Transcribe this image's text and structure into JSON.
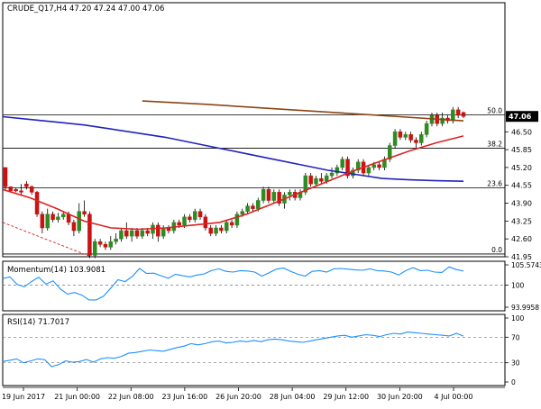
{
  "header": {
    "title": "CRUDE_Q17,H4  47.20 47.24 47.00 47.06"
  },
  "colors": {
    "bull": "#2e8b22",
    "bear": "#cc1111",
    "wick": "#000000",
    "sma_blue": "#2222bb",
    "sma_brown": "#8b4513",
    "sma_red": "#dd2222",
    "momentum": "#1e90ff",
    "rsi": "#1e90ff",
    "trendline": "#dd2222",
    "grid": "#000000",
    "price_tag_bg": "#000000",
    "price_tag_fg": "#ffffff"
  },
  "chart_data": [
    {
      "type": "candlestick",
      "title": "CRUDE_Q17,H4  47.20 47.24 47.00 47.06",
      "ylim": [
        41.95,
        51.2
      ],
      "y_ticks": [
        {
          "label": "46.50",
          "value": 46.5
        },
        {
          "label": "45.85",
          "value": 45.85
        },
        {
          "label": "45.20",
          "value": 45.2
        },
        {
          "label": "44.55",
          "value": 44.55
        },
        {
          "label": "43.90",
          "value": 43.9
        },
        {
          "label": "43.25",
          "value": 43.25
        },
        {
          "label": "42.60",
          "value": 42.6
        },
        {
          "label": "41.95",
          "value": 41.95
        }
      ],
      "current_price": {
        "label": "47.06",
        "value": 47.06
      },
      "fib_levels": [
        {
          "label": "50.0",
          "value": 47.12
        },
        {
          "label": "38.2",
          "value": 45.9
        },
        {
          "label": "23.6",
          "value": 44.46
        },
        {
          "label": "0.0",
          "value": 42.05
        }
      ],
      "candles": [
        [
          45.2,
          44.4,
          44.5,
          45.1
        ],
        [
          44.5,
          44.3,
          44.35,
          44.5
        ],
        [
          44.4,
          44.3,
          44.35,
          44.45
        ],
        [
          44.35,
          44.2,
          44.3,
          44.6
        ],
        [
          44.6,
          44.4,
          44.5,
          44.7
        ],
        [
          44.5,
          44.2,
          44.3,
          44.55
        ],
        [
          44.3,
          43.4,
          43.5,
          44.35
        ],
        [
          43.5,
          42.8,
          43.0,
          43.6
        ],
        [
          43.0,
          42.9,
          43.5,
          43.7
        ],
        [
          43.5,
          43.2,
          43.3,
          43.6
        ],
        [
          43.3,
          43.2,
          43.4,
          43.55
        ],
        [
          43.4,
          43.3,
          43.5,
          43.6
        ],
        [
          43.5,
          43.1,
          43.2,
          43.6
        ],
        [
          43.2,
          42.7,
          42.9,
          43.3
        ],
        [
          42.9,
          42.8,
          43.6,
          43.9
        ],
        [
          43.6,
          43.4,
          43.5,
          44.0
        ],
        [
          43.5,
          41.9,
          42.0,
          43.6
        ],
        [
          42.0,
          41.9,
          42.5,
          42.6
        ],
        [
          42.5,
          42.3,
          42.4,
          42.6
        ],
        [
          42.4,
          42.2,
          42.3,
          42.5
        ],
        [
          42.3,
          42.2,
          42.5,
          42.7
        ],
        [
          42.5,
          42.4,
          42.6,
          42.8
        ],
        [
          42.6,
          42.5,
          42.9,
          43.0
        ],
        [
          42.9,
          42.6,
          42.7,
          43.2
        ],
        [
          42.7,
          42.5,
          42.9,
          43.0
        ],
        [
          42.9,
          42.6,
          42.7,
          43.0
        ],
        [
          42.7,
          42.6,
          42.9,
          43.0
        ],
        [
          42.9,
          42.7,
          42.8,
          43.0
        ],
        [
          42.8,
          42.6,
          43.1,
          43.2
        ],
        [
          43.1,
          42.5,
          42.7,
          43.2
        ],
        [
          42.7,
          42.6,
          43.0,
          43.1
        ],
        [
          43.0,
          42.8,
          42.9,
          43.1
        ],
        [
          42.9,
          42.8,
          43.2,
          43.3
        ],
        [
          43.2,
          43.0,
          43.1,
          43.3
        ],
        [
          43.1,
          43.0,
          43.4,
          43.5
        ],
        [
          43.4,
          43.2,
          43.3,
          43.5
        ],
        [
          43.3,
          43.2,
          43.6,
          43.7
        ],
        [
          43.6,
          43.3,
          43.4,
          43.7
        ],
        [
          43.4,
          42.9,
          43.0,
          43.5
        ],
        [
          43.0,
          42.7,
          42.8,
          43.1
        ],
        [
          42.8,
          42.7,
          43.0,
          43.1
        ],
        [
          43.0,
          42.8,
          42.9,
          43.1
        ],
        [
          42.9,
          42.8,
          43.2,
          43.3
        ],
        [
          43.2,
          43.0,
          43.1,
          43.3
        ],
        [
          43.1,
          43.0,
          43.5,
          43.6
        ],
        [
          43.5,
          43.4,
          43.6,
          43.7
        ],
        [
          43.6,
          43.5,
          43.8,
          43.9
        ],
        [
          43.8,
          43.6,
          43.7,
          43.9
        ],
        [
          43.7,
          43.6,
          44.0,
          44.1
        ],
        [
          44.0,
          43.9,
          44.4,
          44.5
        ],
        [
          44.4,
          43.9,
          44.0,
          44.5
        ],
        [
          44.0,
          43.9,
          44.3,
          44.4
        ],
        [
          44.3,
          43.8,
          43.9,
          44.4
        ],
        [
          43.9,
          43.7,
          44.2,
          44.3
        ],
        [
          44.2,
          44.0,
          44.3,
          44.4
        ],
        [
          44.3,
          44.0,
          44.1,
          44.4
        ],
        [
          44.1,
          44.0,
          44.3,
          44.4
        ],
        [
          44.3,
          44.2,
          44.9,
          45.0
        ],
        [
          44.9,
          44.5,
          44.6,
          45.0
        ],
        [
          44.6,
          44.5,
          44.8,
          44.9
        ],
        [
          44.8,
          44.6,
          44.7,
          45.0
        ],
        [
          44.7,
          44.6,
          44.9,
          45.0
        ],
        [
          44.9,
          44.8,
          45.0,
          45.2
        ],
        [
          45.0,
          44.9,
          45.2,
          45.3
        ],
        [
          45.2,
          45.1,
          45.5,
          45.6
        ],
        [
          45.5,
          44.8,
          44.9,
          45.6
        ],
        [
          44.9,
          44.8,
          45.1,
          45.2
        ],
        [
          45.1,
          45.0,
          45.4,
          45.5
        ],
        [
          45.4,
          44.9,
          45.0,
          45.5
        ],
        [
          45.0,
          44.9,
          45.2,
          45.3
        ],
        [
          45.2,
          45.1,
          45.3,
          45.4
        ],
        [
          45.3,
          45.1,
          45.2,
          45.4
        ],
        [
          45.2,
          45.1,
          45.5,
          45.6
        ],
        [
          45.5,
          45.4,
          46.0,
          46.1
        ],
        [
          46.0,
          45.9,
          46.5,
          46.6
        ],
        [
          46.5,
          46.2,
          46.3,
          46.6
        ],
        [
          46.3,
          46.2,
          46.4,
          46.5
        ],
        [
          46.4,
          46.1,
          46.2,
          46.5
        ],
        [
          46.2,
          45.9,
          46.1,
          46.3
        ],
        [
          46.1,
          46.0,
          46.4,
          46.5
        ],
        [
          46.4,
          46.3,
          46.8,
          46.9
        ],
        [
          46.8,
          46.7,
          47.1,
          47.2
        ],
        [
          47.1,
          46.7,
          46.8,
          47.2
        ],
        [
          46.8,
          46.7,
          47.0,
          47.2
        ],
        [
          47.0,
          46.8,
          46.9,
          47.1
        ],
        [
          46.9,
          46.8,
          47.3,
          47.4
        ],
        [
          47.3,
          47.0,
          47.1,
          47.4
        ],
        [
          47.2,
          47.0,
          47.06,
          47.24
        ]
      ],
      "sma_blue": [
        47.05,
        46.95,
        46.85,
        46.75,
        46.6,
        46.45,
        46.3,
        46.1,
        45.9,
        45.7,
        45.5,
        45.3,
        45.1,
        44.95,
        44.8,
        44.75,
        44.72,
        44.7
      ],
      "sma_brown": [
        47.62,
        47.5,
        47.35,
        47.2,
        47.05,
        46.9
      ],
      "sma_red": [
        44.4,
        44.1,
        43.7,
        43.25,
        43.0,
        42.95,
        43.0,
        43.1,
        43.2,
        43.5,
        43.9,
        44.3,
        44.7,
        45.1,
        45.45,
        45.8,
        46.1,
        46.35
      ],
      "x_tick_labels": [
        "19 Jun 2017",
        "21 Jun 00:00",
        "22 Jun 08:00",
        "23 Jun 16:00",
        "26 Jun 20:00",
        "28 Jun 04:00",
        "29 Jun 12:00",
        "30 Jun 20:00",
        "4 Jul 00:00"
      ]
    },
    {
      "type": "line",
      "title": "Momentum(14) 103.9081",
      "ylim": [
        93.9958,
        105.5743
      ],
      "y_ticks": [
        {
          "label": "105.5743",
          "value": 105.5743
        },
        {
          "label": "100",
          "value": 100
        },
        {
          "label": "93.9958",
          "value": 93.9958
        }
      ],
      "reference_level": 100,
      "series": [
        {
          "values": [
            101.8,
            102.3,
            100.2,
            99.6,
            101.0,
            102.2,
            100.3,
            101.2,
            99.0,
            97.6,
            98.0,
            97.3,
            96.0,
            96.0,
            97.0,
            99.2,
            101.5,
            101.0,
            102.4,
            104.6,
            103.2,
            103.3,
            102.6,
            101.9,
            103.0,
            102.6,
            102.3,
            102.8,
            103.1,
            104.0,
            104.5,
            103.8,
            103.6,
            104.0,
            103.9,
            103.6,
            102.5,
            103.4,
            104.4,
            104.7,
            103.8,
            103.0,
            102.5,
            103.8,
            104.0,
            103.6,
            104.5,
            104.6,
            104.4,
            104.2,
            104.1,
            104.5,
            104.0,
            103.9,
            103.6,
            102.8,
            104.0,
            104.8,
            104.0,
            104.1,
            103.6,
            103.5,
            105.0,
            104.3,
            103.9
          ]
        }
      ]
    },
    {
      "type": "line",
      "title": "RSI(14) 71.7017",
      "ylim": [
        0,
        100
      ],
      "y_ticks": [
        {
          "label": "100",
          "value": 100
        },
        {
          "label": "70",
          "value": 70
        },
        {
          "label": "30",
          "value": 30
        },
        {
          "label": "0",
          "value": 0
        }
      ],
      "reference_levels": [
        70,
        30
      ],
      "series": [
        {
          "values": [
            32,
            34,
            36,
            30,
            33,
            36,
            35,
            24,
            27,
            33,
            31,
            32,
            35,
            31,
            36,
            38,
            37,
            40,
            45,
            46,
            48,
            50,
            49,
            48,
            51,
            54,
            56,
            60,
            58,
            60,
            63,
            64,
            61,
            62,
            64,
            63,
            65,
            63,
            66,
            67,
            66,
            64,
            63,
            62,
            64,
            66,
            68,
            70,
            72,
            73,
            70,
            72,
            74,
            73,
            71,
            74,
            76,
            75,
            78,
            77,
            76,
            75,
            74,
            73,
            72,
            76,
            71.7
          ]
        }
      ]
    }
  ]
}
